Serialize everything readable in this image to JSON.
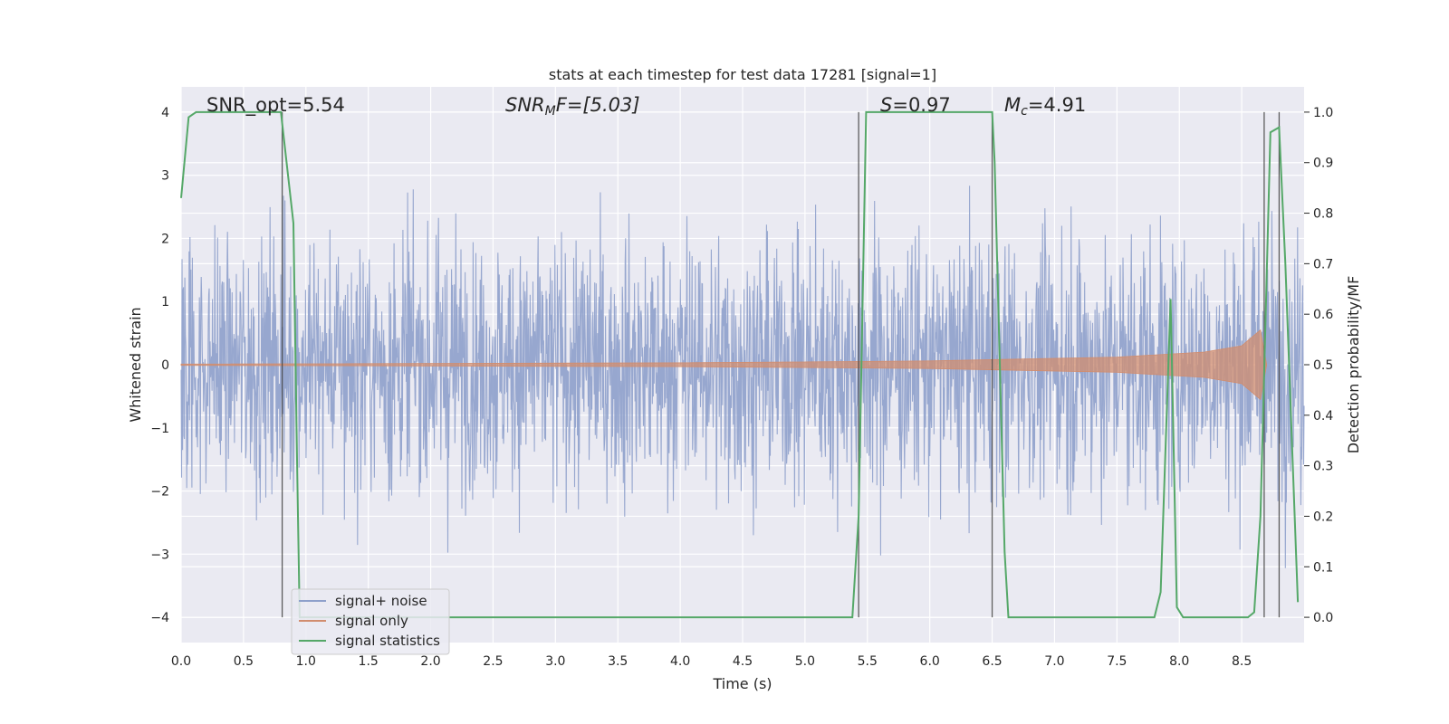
{
  "chart_data": {
    "type": "line",
    "title": "stats at each timestep for test data 17281 [signal=1]",
    "xlabel": "Time (s)",
    "ylabel": "Whitened strain",
    "ylabel_right": "Detection probability/MF",
    "xlim": [
      0.0,
      9.0
    ],
    "ylim": [
      -4.4,
      4.4
    ],
    "ylim_right": [
      -0.05,
      1.05
    ],
    "x_ticks": [
      "0.0",
      "0.5",
      "1.0",
      "1.5",
      "2.0",
      "2.5",
      "3.0",
      "3.5",
      "4.0",
      "4.5",
      "5.0",
      "5.5",
      "6.0",
      "6.5",
      "7.0",
      "7.5",
      "8.0",
      "8.5"
    ],
    "x_tick_values": [
      0.0,
      0.5,
      1.0,
      1.5,
      2.0,
      2.5,
      3.0,
      3.5,
      4.0,
      4.5,
      5.0,
      5.5,
      6.0,
      6.5,
      7.0,
      7.5,
      8.0,
      8.5
    ],
    "y_ticks": [
      "−4",
      "−3",
      "−2",
      "−1",
      "0",
      "1",
      "2",
      "3",
      "4"
    ],
    "y_tick_values": [
      -4,
      -3,
      -2,
      -1,
      0,
      1,
      2,
      3,
      4
    ],
    "y_right_ticks": [
      "0.0",
      "0.1",
      "0.2",
      "0.3",
      "0.4",
      "0.5",
      "0.6",
      "0.7",
      "0.8",
      "0.9",
      "1.0"
    ],
    "y_right_tick_values": [
      0.0,
      0.1,
      0.2,
      0.3,
      0.4,
      0.5,
      0.6,
      0.7,
      0.8,
      0.9,
      1.0
    ],
    "grid": true,
    "legend_position": "lower-left",
    "annotations": [
      {
        "text": "SNR_opt=5.54",
        "x": 0.19
      },
      {
        "text": "SNRₘF=[5.03]",
        "x": 2.6,
        "math": "SNR_MF"
      },
      {
        "text": "S=0.97",
        "x": 5.6,
        "math": "S"
      },
      {
        "text": "Mc=4.91",
        "x": 6.65,
        "math": "M_c"
      }
    ],
    "annotation_parts": {
      "snr_mf_base": "SNR",
      "snr_mf_sub": "M",
      "snr_mf_rest": "F=[5.03]",
      "s_base": "S",
      "s_rest": "=0.97",
      "mc_base": "M",
      "mc_sub": "c",
      "mc_rest": "=4.91"
    },
    "vertical_lines_x": [
      0.81,
      5.43,
      6.5,
      8.68,
      8.8
    ],
    "series": [
      {
        "name": "signal+ noise",
        "color": "#8ea0cb",
        "kind": "noise-band",
        "typical_abs_amplitude": 1.5,
        "max_abs": 4.0
      },
      {
        "name": "signal only",
        "color": "#d18d6f",
        "kind": "chirp-envelope",
        "amplitude_at_x": [
          [
            0.0,
            0.01
          ],
          [
            4.0,
            0.03
          ],
          [
            6.0,
            0.06
          ],
          [
            7.5,
            0.12
          ],
          [
            8.2,
            0.2
          ],
          [
            8.5,
            0.3
          ],
          [
            8.65,
            0.55
          ],
          [
            8.7,
            0.0
          ]
        ]
      },
      {
        "name": "signal statistics",
        "color": "#55a868",
        "axis": "right",
        "x": [
          0.0,
          0.06,
          0.12,
          0.8,
          0.9,
          0.93,
          0.95,
          0.97,
          5.38,
          5.43,
          5.49,
          6.5,
          6.52,
          6.6,
          6.63,
          7.8,
          7.85,
          7.93,
          7.98,
          8.03,
          8.55,
          8.6,
          8.65,
          8.73,
          8.8,
          8.85,
          8.95
        ],
        "y": [
          0.83,
          0.99,
          1.0,
          1.0,
          0.78,
          0.3,
          0.0,
          0.0,
          0.0,
          0.2,
          1.0,
          1.0,
          0.9,
          0.13,
          0.0,
          0.0,
          0.05,
          0.63,
          0.02,
          0.0,
          0.0,
          0.01,
          0.2,
          0.96,
          0.97,
          0.7,
          0.03
        ]
      }
    ]
  }
}
